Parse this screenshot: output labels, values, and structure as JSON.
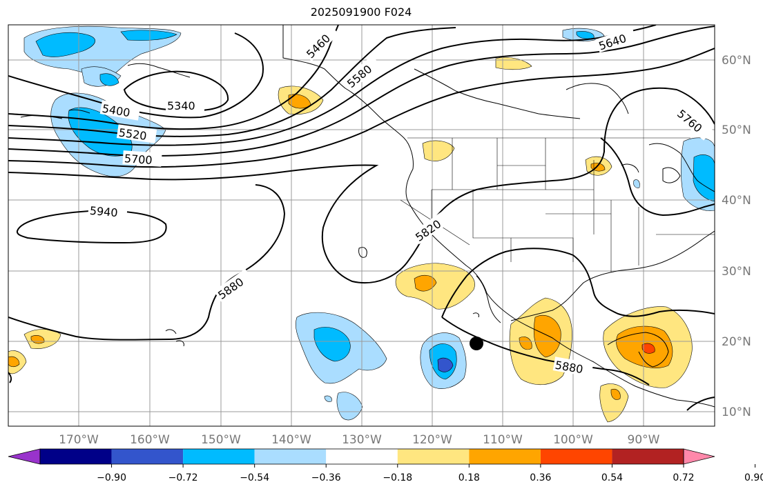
{
  "title": "2025091900 F024",
  "lon_labels": [
    "170°W",
    "160°W",
    "150°W",
    "140°W",
    "130°W",
    "120°W",
    "110°W",
    "100°W",
    "90°W"
  ],
  "lat_labels": [
    "60°N",
    "50°N",
    "40°N",
    "30°N",
    "20°N",
    "10°N"
  ],
  "contour_labels": [
    "5340",
    "5400",
    "5460",
    "5520",
    "5580",
    "5640",
    "5700",
    "5760",
    "5820",
    "5880",
    "5880",
    "5940"
  ],
  "colorbar": {
    "ticks": [
      "−0.90",
      "−0.72",
      "−0.54",
      "−0.36",
      "−0.18",
      "0.18",
      "0.36",
      "0.54",
      "0.72",
      "0.90"
    ],
    "colors": [
      "#9933cc",
      "#000088",
      "#3355cc",
      "#00bbff",
      "#aaddff",
      "#ffffff",
      "#ffe680",
      "#ffa500",
      "#ff4500",
      "#b22222",
      "#ff88aa"
    ]
  },
  "colors": {
    "neg1": "#aaddff",
    "neg2": "#00bbff",
    "neg3": "#3355cc",
    "pos1": "#ffe680",
    "pos2": "#ffa500",
    "pos3": "#ff4500"
  }
}
